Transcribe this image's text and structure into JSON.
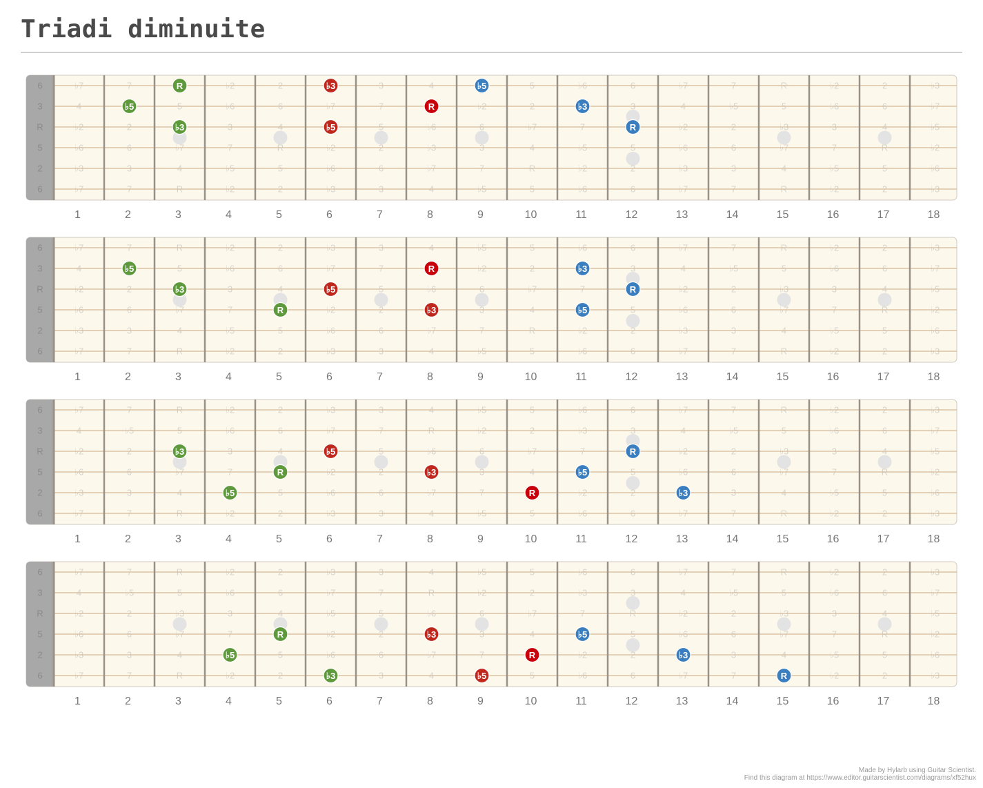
{
  "title": "Triadi diminuite",
  "credit_line1": "Made by Hylarb using Guitar Scientist.",
  "credit_line2": "Find this diagram at https://www.editor.guitarscientist.com/diagrams/xf52hux",
  "colors": {
    "green": "#5e9a3c",
    "red": "#c0281e",
    "darkred": "#c8000a",
    "blue": "#3a7ebf",
    "board_bg": "#fdf8ec",
    "nut": "#a8a8a8",
    "string": "#d6b896",
    "fret": "#999088",
    "inlay": "#e3e3e3"
  },
  "tuning_labels": [
    "6",
    "3",
    "R",
    "5",
    "2",
    "6"
  ],
  "fret_numbers": [
    "1",
    "2",
    "3",
    "4",
    "5",
    "6",
    "7",
    "8",
    "9",
    "10",
    "11",
    "12",
    "13",
    "14",
    "15",
    "16",
    "17",
    "18"
  ],
  "interval_grid": [
    [
      "♭7",
      "7",
      "R",
      "♭2",
      "2",
      "♭3",
      "3",
      "4",
      "♭5",
      "5",
      "♭6",
      "6",
      "♭7",
      "7",
      "R",
      "♭2",
      "2",
      "♭3"
    ],
    [
      "4",
      "♭5",
      "5",
      "♭6",
      "6",
      "♭7",
      "7",
      "R",
      "♭2",
      "2",
      "♭3",
      "3",
      "4",
      "♭5",
      "5",
      "♭6",
      "6",
      "♭7"
    ],
    [
      "♭2",
      "2",
      "♭3",
      "3",
      "4",
      "♭5",
      "5",
      "♭6",
      "6",
      "♭7",
      "7",
      "R",
      "♭2",
      "2",
      "♭3",
      "3",
      "4",
      "♭5"
    ],
    [
      "♭6",
      "6",
      "♭7",
      "7",
      "R",
      "♭2",
      "2",
      "♭3",
      "3",
      "4",
      "♭5",
      "5",
      "♭6",
      "6",
      "♭7",
      "7",
      "R",
      "♭2"
    ],
    [
      "♭3",
      "3",
      "4",
      "♭5",
      "5",
      "♭6",
      "6",
      "♭7",
      "7",
      "R",
      "♭2",
      "2",
      "♭3",
      "3",
      "4",
      "♭5",
      "5",
      "♭6"
    ],
    [
      "♭7",
      "7",
      "R",
      "♭2",
      "2",
      "♭3",
      "3",
      "4",
      "♭5",
      "5",
      "♭6",
      "6",
      "♭7",
      "7",
      "R",
      "♭2",
      "2",
      "♭3"
    ]
  ],
  "diagrams": [
    {
      "notes": [
        {
          "string": 1,
          "fret": 3,
          "label": "R",
          "color": "green"
        },
        {
          "string": 2,
          "fret": 2,
          "label": "♭5",
          "color": "green"
        },
        {
          "string": 3,
          "fret": 3,
          "label": "♭3",
          "color": "green"
        },
        {
          "string": 1,
          "fret": 6,
          "label": "♭3",
          "color": "red"
        },
        {
          "string": 2,
          "fret": 8,
          "label": "R",
          "color": "darkred"
        },
        {
          "string": 3,
          "fret": 6,
          "label": "♭5",
          "color": "red"
        },
        {
          "string": 1,
          "fret": 9,
          "label": "♭5",
          "color": "blue"
        },
        {
          "string": 2,
          "fret": 11,
          "label": "♭3",
          "color": "blue"
        },
        {
          "string": 3,
          "fret": 12,
          "label": "R",
          "color": "blue"
        }
      ]
    },
    {
      "notes": [
        {
          "string": 2,
          "fret": 2,
          "label": "♭5",
          "color": "green"
        },
        {
          "string": 3,
          "fret": 3,
          "label": "♭3",
          "color": "green"
        },
        {
          "string": 4,
          "fret": 5,
          "label": "R",
          "color": "green"
        },
        {
          "string": 2,
          "fret": 8,
          "label": "R",
          "color": "darkred"
        },
        {
          "string": 3,
          "fret": 6,
          "label": "♭5",
          "color": "red"
        },
        {
          "string": 4,
          "fret": 8,
          "label": "♭3",
          "color": "red"
        },
        {
          "string": 2,
          "fret": 11,
          "label": "♭3",
          "color": "blue"
        },
        {
          "string": 3,
          "fret": 12,
          "label": "R",
          "color": "blue"
        },
        {
          "string": 4,
          "fret": 11,
          "label": "♭5",
          "color": "blue"
        }
      ]
    },
    {
      "notes": [
        {
          "string": 3,
          "fret": 3,
          "label": "♭3",
          "color": "green"
        },
        {
          "string": 4,
          "fret": 5,
          "label": "R",
          "color": "green"
        },
        {
          "string": 5,
          "fret": 4,
          "label": "♭5",
          "color": "green"
        },
        {
          "string": 3,
          "fret": 6,
          "label": "♭5",
          "color": "red"
        },
        {
          "string": 4,
          "fret": 8,
          "label": "♭3",
          "color": "red"
        },
        {
          "string": 5,
          "fret": 10,
          "label": "R",
          "color": "darkred"
        },
        {
          "string": 3,
          "fret": 12,
          "label": "R",
          "color": "blue"
        },
        {
          "string": 4,
          "fret": 11,
          "label": "♭5",
          "color": "blue"
        },
        {
          "string": 5,
          "fret": 13,
          "label": "♭3",
          "color": "blue"
        }
      ]
    },
    {
      "notes": [
        {
          "string": 4,
          "fret": 5,
          "label": "R",
          "color": "green"
        },
        {
          "string": 5,
          "fret": 4,
          "label": "♭5",
          "color": "green"
        },
        {
          "string": 6,
          "fret": 6,
          "label": "♭3",
          "color": "green"
        },
        {
          "string": 4,
          "fret": 8,
          "label": "♭3",
          "color": "red"
        },
        {
          "string": 5,
          "fret": 10,
          "label": "R",
          "color": "darkred"
        },
        {
          "string": 6,
          "fret": 9,
          "label": "♭5",
          "color": "red"
        },
        {
          "string": 4,
          "fret": 11,
          "label": "♭5",
          "color": "blue"
        },
        {
          "string": 5,
          "fret": 13,
          "label": "♭3",
          "color": "blue"
        },
        {
          "string": 6,
          "fret": 15,
          "label": "R",
          "color": "blue"
        }
      ]
    }
  ],
  "inlays": {
    "single": [
      3,
      5,
      7,
      9,
      15,
      17
    ],
    "double": [
      12
    ]
  }
}
